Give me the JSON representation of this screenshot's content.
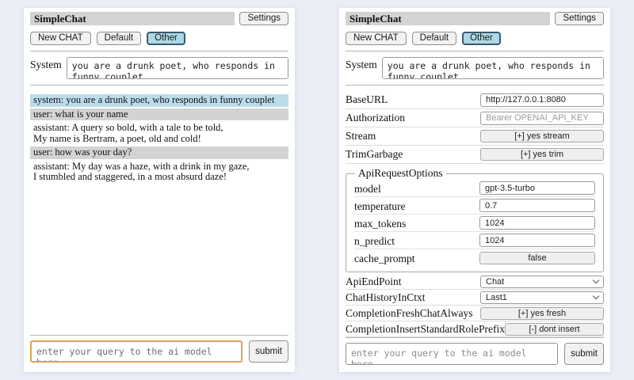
{
  "shared": {
    "title": "SimpleChat",
    "settings_label": "Settings",
    "new_chat_label": "New CHAT",
    "default_label": "Default",
    "other_label": "Other",
    "selected_session": "Other",
    "system_label": "System",
    "system_value": "you are a drunk poet, who responds in funny couplet",
    "query_placeholder": "enter your query to the ai model here",
    "submit_label": "submit"
  },
  "chat": {
    "messages": [
      {
        "role": "system",
        "text": "system: you are a drunk poet, who responds in funny couplet"
      },
      {
        "role": "user",
        "text": "user: what is your name"
      },
      {
        "role": "assistant",
        "text": "assistant: A query so bold, with a tale to be told,\nMy name is Bertram, a poet, old and cold!"
      },
      {
        "role": "user",
        "text": "user: how was your day?"
      },
      {
        "role": "assistant",
        "text": "assistant: My day was a haze, with a drink in my gaze,\nI stumbled and staggered, in a most absurd daze!"
      }
    ]
  },
  "settings": {
    "base_url": {
      "label": "BaseURL",
      "value": "http://127.0.0.1:8080"
    },
    "authorization": {
      "label": "Authorization",
      "placeholder": "Bearer OPENAI_API_KEY"
    },
    "stream": {
      "label": "Stream",
      "button": "[+] yes stream"
    },
    "trim_garbage": {
      "label": "TrimGarbage",
      "button": "[+] yes trim"
    },
    "api_request_options": {
      "legend": "ApiRequestOptions",
      "model": {
        "label": "model",
        "value": "gpt-3.5-turbo"
      },
      "temperature": {
        "label": "temperature",
        "value": "0.7"
      },
      "max_tokens": {
        "label": "max_tokens",
        "value": "1024"
      },
      "n_predict": {
        "label": "n_predict",
        "value": "1024"
      },
      "cache_prompt": {
        "label": "cache_prompt",
        "button": "false"
      }
    },
    "api_endpoint": {
      "label": "ApiEndPoint",
      "selected": "Chat"
    },
    "chat_history_in_ctxt": {
      "label": "ChatHistoryInCtxt",
      "selected": "Last1"
    },
    "completion_fresh_chat_always": {
      "label": "CompletionFreshChatAlways",
      "button": "[+] yes fresh"
    },
    "completion_insert_standard_role_prefix": {
      "label": "CompletionInsertStandardRolePrefix",
      "button": "[-] dont insert"
    }
  },
  "colors": {
    "selected_session_bg": "#add8e6",
    "system_message_bg": "#bcdcea",
    "user_message_bg": "#d3d3d3",
    "titlebar_bg": "#d3d3d3",
    "focused_input_border": "#d8a64f",
    "page_bg": "#ebeef6"
  }
}
